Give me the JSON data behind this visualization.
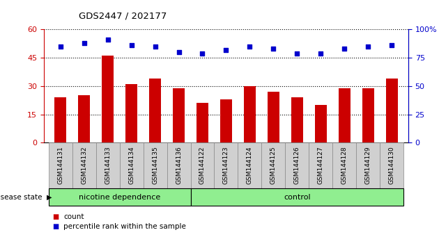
{
  "title": "GDS2447 / 202177",
  "samples": [
    "GSM144131",
    "GSM144132",
    "GSM144133",
    "GSM144134",
    "GSM144135",
    "GSM144136",
    "GSM144122",
    "GSM144123",
    "GSM144124",
    "GSM144125",
    "GSM144126",
    "GSM144127",
    "GSM144128",
    "GSM144129",
    "GSM144130"
  ],
  "bar_values": [
    24,
    25,
    46,
    31,
    34,
    29,
    21,
    23,
    30,
    27,
    24,
    20,
    29,
    29,
    34
  ],
  "percentile_values": [
    85,
    88,
    91,
    86,
    85,
    80,
    79,
    82,
    85,
    83,
    79,
    79,
    83,
    85,
    86
  ],
  "bar_color": "#cc0000",
  "dot_color": "#0000cc",
  "ylim_left": [
    0,
    60
  ],
  "ylim_right": [
    0,
    100
  ],
  "yticks_left": [
    0,
    15,
    30,
    45,
    60
  ],
  "yticks_right": [
    0,
    25,
    50,
    75,
    100
  ],
  "ytick_labels_left": [
    "0",
    "15",
    "30",
    "45",
    "60"
  ],
  "ytick_labels_right": [
    "0",
    "25",
    "50",
    "75",
    "100%"
  ],
  "groups": [
    {
      "label": "nicotine dependence",
      "start": 0,
      "end": 6,
      "color": "#90ee90"
    },
    {
      "label": "control",
      "start": 6,
      "end": 15,
      "color": "#90ee90"
    }
  ],
  "group_label_prefix": "disease state",
  "legend_items": [
    {
      "label": "count",
      "color": "#cc0000"
    },
    {
      "label": "percentile rank within the sample",
      "color": "#0000cc"
    }
  ],
  "grid_yticks": [
    15,
    30,
    45
  ],
  "tick_color_left": "#cc0000",
  "tick_color_right": "#0000cc",
  "bar_width": 0.5,
  "xlim": [
    -0.7,
    14.7
  ],
  "xtick_cell_color": "#d0d0d0",
  "xtick_cell_edge": "#888888",
  "group_bar_color": "#228B22"
}
